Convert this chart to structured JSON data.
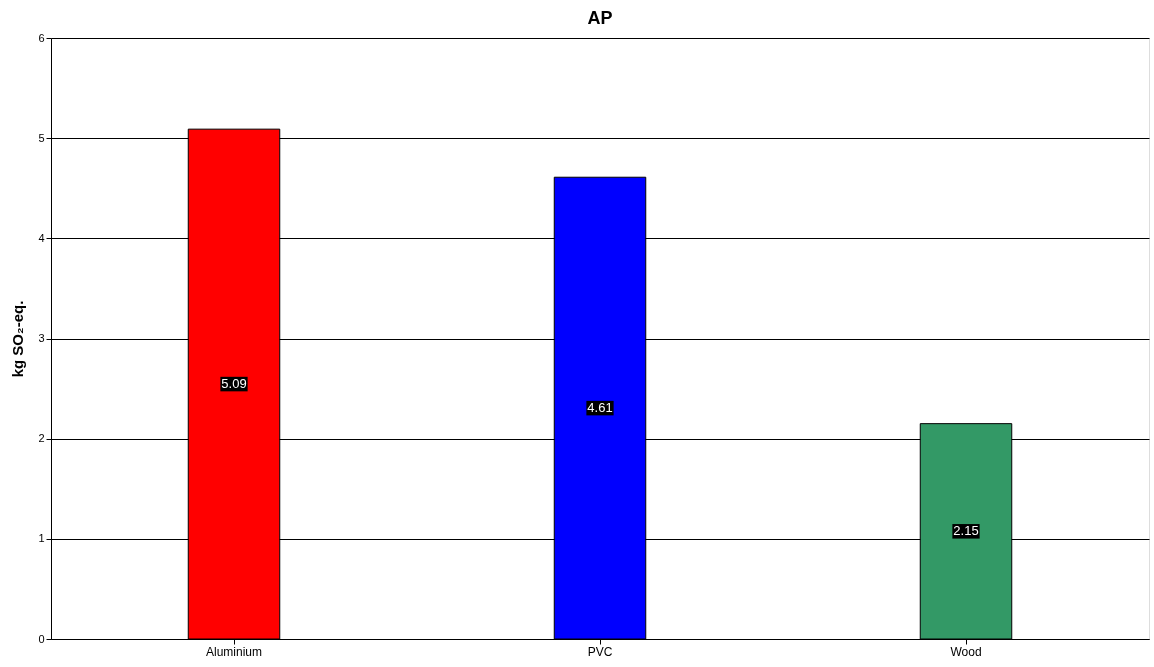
{
  "chart_data": {
    "type": "bar",
    "title": "AP",
    "ylabel": "kg SO₂-eq.",
    "categories": [
      "Aluminium",
      "PVC",
      "Wood"
    ],
    "values": [
      5.09,
      4.61,
      2.15
    ],
    "colors": [
      "#ff0000",
      "#0000ff",
      "#339966"
    ],
    "ylim": [
      0,
      6
    ],
    "yticks": [
      0,
      1,
      2,
      3,
      4,
      5,
      6
    ],
    "grid": "y",
    "data_labels": true
  }
}
